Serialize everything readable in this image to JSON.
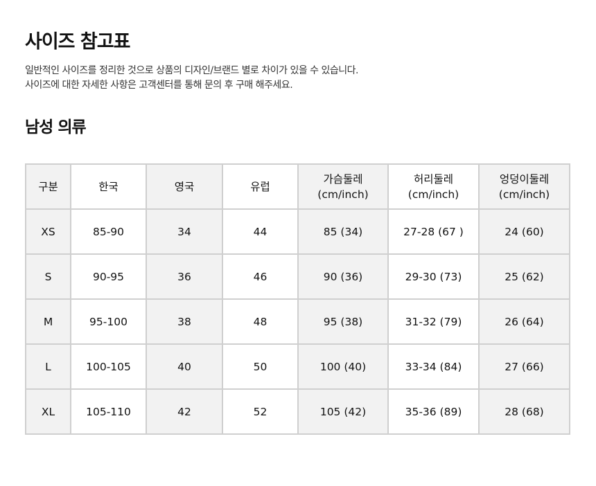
{
  "title": "사이즈 참고표",
  "description": [
    "일반적인 사이즈를 정리한 것으로 상품의 디자인/브랜드 별로 차이가 있을 수 있습니다.",
    "사이즈에 대한 자세한 사항은 고객센터를 통해 문의 후 구매 해주세요."
  ],
  "section_title": "남성 의류",
  "table": {
    "headers": [
      {
        "line1": "구분",
        "line2": ""
      },
      {
        "line1": "한국",
        "line2": ""
      },
      {
        "line1": "영국",
        "line2": ""
      },
      {
        "line1": "유럽",
        "line2": ""
      },
      {
        "line1": "가슴둘레",
        "line2": "(cm/inch)"
      },
      {
        "line1": "허리둘레",
        "line2": "(cm/inch)"
      },
      {
        "line1": "엉덩이둘레",
        "line2": "(cm/inch)"
      }
    ],
    "rows": [
      [
        "XS",
        "85-90",
        "34",
        "44",
        "85 (34)",
        "27-28 (67 )",
        "24 (60)"
      ],
      [
        "S",
        "90-95",
        "36",
        "46",
        "90 (36)",
        "29-30 (73)",
        "25 (62)"
      ],
      [
        "M",
        "95-100",
        "38",
        "48",
        "95 (38)",
        "31-32 (79)",
        "26 (64)"
      ],
      [
        "L",
        "100-105",
        "40",
        "50",
        "100 (40)",
        "33-34 (84)",
        "27 (66)"
      ],
      [
        "XL",
        "105-110",
        "42",
        "52",
        "105 (42)",
        "35-36 (89)",
        "28 (68)"
      ]
    ]
  },
  "colors": {
    "shaded_column": "#f2f2f2",
    "border": "#cfcfcf"
  }
}
